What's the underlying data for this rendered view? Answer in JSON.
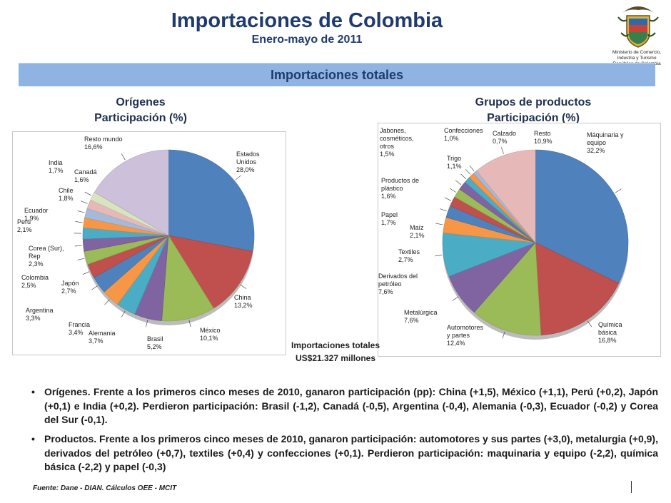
{
  "header": {
    "title": "Importaciones de Colombia",
    "subtitle": "Enero-mayo de 2011",
    "ministry_lines": [
      "Ministerio de Comercio,",
      "Industria y Turismo",
      "República de Colombia"
    ]
  },
  "section_bar": {
    "label": "Importaciones totales"
  },
  "total": {
    "line1": "Importaciones totales",
    "line2": "US$21.327 millones"
  },
  "chart_data": [
    {
      "type": "pie",
      "title_line1": "Orígenes",
      "title_line2": "Participación (%)",
      "slices": [
        {
          "name": "Estados Unidos",
          "value": 28.0,
          "label": "28,0%",
          "color": "#4f81bd"
        },
        {
          "name": "China",
          "value": 13.2,
          "label": "13,2%",
          "color": "#c0504d"
        },
        {
          "name": "México",
          "value": 10.1,
          "label": "10,1%",
          "color": "#9bbb59"
        },
        {
          "name": "Brasil",
          "value": 5.2,
          "label": "5,2%",
          "color": "#8064a2"
        },
        {
          "name": "Alemania",
          "value": 3.7,
          "label": "3,7%",
          "color": "#4bacc6"
        },
        {
          "name": "Francia",
          "value": 3.4,
          "label": "3,4%",
          "color": "#f79646"
        },
        {
          "name": "Argentina",
          "value": 3.3,
          "label": "3,3%",
          "color": "#4f81bd"
        },
        {
          "name": "Japón",
          "value": 2.7,
          "label": "2,7%",
          "color": "#c0504d"
        },
        {
          "name": "Colombia",
          "value": 2.5,
          "label": "2,5%",
          "color": "#9bbb59"
        },
        {
          "name": "Corea (Sur), Rep",
          "value": 2.3,
          "label": "2,3%",
          "color": "#8064a2"
        },
        {
          "name": "Perú",
          "value": 2.1,
          "label": "2,1%",
          "color": "#4bacc6"
        },
        {
          "name": "Ecuador",
          "value": 1.9,
          "label": "1,9%",
          "color": "#f79646"
        },
        {
          "name": "Chile",
          "value": 1.8,
          "label": "1,8%",
          "color": "#a5b9d9"
        },
        {
          "name": "India",
          "value": 1.7,
          "label": "1,7%",
          "color": "#e6b9b8"
        },
        {
          "name": "Canadá",
          "value": 1.6,
          "label": "1,6%",
          "color": "#d7e4bd"
        },
        {
          "name": "Resto mundo",
          "value": 16.6,
          "label": "16,6%",
          "color": "#ccc0da"
        }
      ]
    },
    {
      "type": "pie",
      "title_line1": "Grupos de productos",
      "title_line2": "Participación (%)",
      "slices": [
        {
          "name": "Máquinaria y equipo",
          "value": 32.2,
          "label": "32,2%",
          "color": "#4f81bd"
        },
        {
          "name": "Química básica",
          "value": 16.8,
          "label": "16,8%",
          "color": "#c0504d"
        },
        {
          "name": "Automotores y partes",
          "value": 12.4,
          "label": "12,4%",
          "color": "#9bbb59"
        },
        {
          "name": "Metalúrgica",
          "value": 7.6,
          "label": "7,6%",
          "color": "#8064a2"
        },
        {
          "name": "Derivados del petróleo",
          "value": 7.6,
          "label": "7,6%",
          "color": "#4bacc6"
        },
        {
          "name": "Textiles",
          "value": 2.7,
          "label": "2,7%",
          "color": "#f79646"
        },
        {
          "name": "Maíz",
          "value": 2.1,
          "label": "2,1%",
          "color": "#4f81bd"
        },
        {
          "name": "Papel",
          "value": 1.7,
          "label": "1,7%",
          "color": "#c0504d"
        },
        {
          "name": "Productos de plástico",
          "value": 1.6,
          "label": "1,6%",
          "color": "#9bbb59"
        },
        {
          "name": "Jabones, cosméticos, otros",
          "value": 1.5,
          "label": "1,5%",
          "color": "#8064a2"
        },
        {
          "name": "Trigo",
          "value": 1.1,
          "label": "1,1%",
          "color": "#4bacc6"
        },
        {
          "name": "Confecciones",
          "value": 1.0,
          "label": "1,0%",
          "color": "#f79646"
        },
        {
          "name": "Calzado",
          "value": 0.7,
          "label": "0,7%",
          "color": "#a5b9d9"
        },
        {
          "name": "Resto",
          "value": 10.9,
          "label": "10,9%",
          "color": "#e6b9b8"
        }
      ]
    }
  ],
  "bullets": [
    "Orígenes. Frente a los primeros cinco meses de 2010, ganaron participación (pp): China (+1,5), México (+1,1), Perú (+0,2), Japón (+0,1) e India (+0,2). Perdieron participación: Brasil (-1,2), Canadá (-0,5), Argentina (-0,4), Alemania (-0,3), Ecuador (-0,2) y Corea del Sur (-0,1).",
    "Productos. Frente a los primeros cinco meses de 2010, ganaron participación: automotores y sus partes (+3,0), metalurgia (+0,9), derivados del petróleo (+0,7), textiles (+0,4) y confecciones (+0,1). Perdieron participación: maquinaria y equipo (-2,2), química básica (-2,2) y papel (-0,3)"
  ],
  "footer": {
    "source": "Fuente: Dane - DIAN. Cálculos OEE - MCIT"
  }
}
